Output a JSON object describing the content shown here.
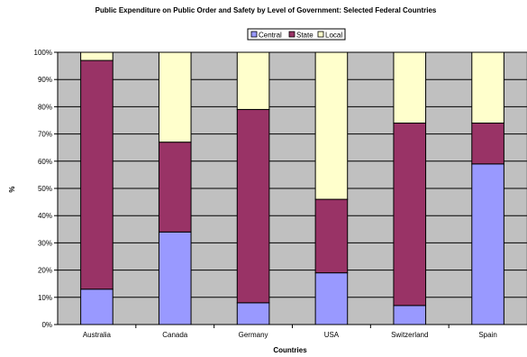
{
  "chart_data": {
    "type": "bar",
    "stacked": true,
    "title": "Public Expenditure on Public Order and Safety by Level of Government: Selected Federal Countries",
    "xlabel": "Countries",
    "ylabel": "%",
    "ylim": [
      0,
      100
    ],
    "y_ticks": [
      "0%",
      "10%",
      "20%",
      "30%",
      "40%",
      "50%",
      "60%",
      "70%",
      "80%",
      "90%",
      "100%"
    ],
    "categories": [
      "Australia",
      "Canada",
      "Germany",
      "USA",
      "Switzerland",
      "Spain"
    ],
    "series": [
      {
        "name": "Central",
        "color": "#9999ff",
        "values": [
          13,
          34,
          8,
          19,
          7,
          59
        ]
      },
      {
        "name": "State",
        "color": "#993366",
        "values": [
          84,
          33,
          71,
          27,
          67,
          15
        ]
      },
      {
        "name": "Local",
        "color": "#ffffcc",
        "values": [
          3,
          33,
          21,
          54,
          26,
          26
        ]
      }
    ],
    "plot_background": "#c0c0c0",
    "grid": true,
    "legend_position": "top-center"
  }
}
